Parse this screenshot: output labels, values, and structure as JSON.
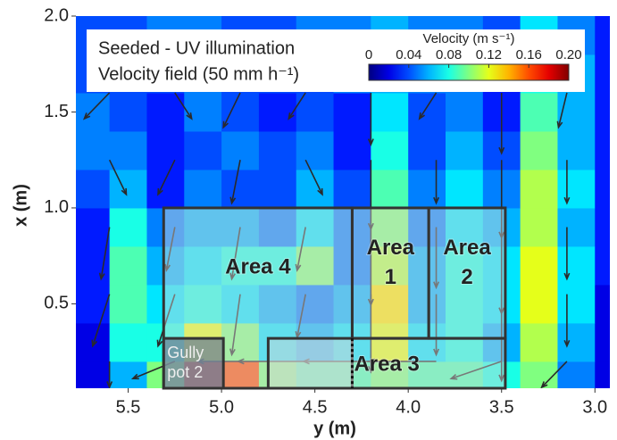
{
  "chart_data": {
    "type": "heatmap",
    "legend_text": [
      "Seeded - UV illumination",
      "Velocity field (50 mm h⁻¹)"
    ],
    "xlabel": "y (m)",
    "ylabel": "x (m)",
    "xlim": [
      5.78,
      2.92
    ],
    "ylim": [
      0.06,
      2.0
    ],
    "xticks": [
      5.5,
      {
        "value": 5.0,
        "label": "5.0"
      },
      4.5,
      {
        "value": 4.0,
        "label": "4.0"
      },
      3.5,
      {
        "value": 3.0,
        "label": "3.0"
      }
    ],
    "yticks": [
      0.5,
      {
        "value": 1.0,
        "label": "1.0"
      },
      1.5,
      {
        "value": 2.0,
        "label": "2.0"
      }
    ],
    "x": [
      5.7,
      5.5,
      5.3,
      5.1,
      4.9,
      4.7,
      4.5,
      4.3,
      4.1,
      3.9,
      3.7,
      3.5,
      3.3,
      3.1,
      2.9
    ],
    "y": [
      0.1,
      0.3,
      0.5,
      0.7,
      0.9,
      1.1,
      1.3,
      1.5,
      1.7,
      1.9
    ],
    "z": [
      [
        0.02,
        0.06,
        0.1,
        0.17,
        0.16,
        0.1,
        0.09,
        0.09,
        0.1,
        0.09,
        0.09,
        0.08,
        0.1,
        0.05,
        0.02
      ],
      [
        0.02,
        0.08,
        0.08,
        0.12,
        0.1,
        0.07,
        0.06,
        0.07,
        0.12,
        0.07,
        0.08,
        0.06,
        0.11,
        0.06,
        0.02
      ],
      [
        0.03,
        0.09,
        0.07,
        0.08,
        0.07,
        0.06,
        0.05,
        0.06,
        0.13,
        0.06,
        0.08,
        0.07,
        0.12,
        0.07,
        0.02
      ],
      [
        0.03,
        0.09,
        0.06,
        0.07,
        0.08,
        0.08,
        0.1,
        0.05,
        0.11,
        0.06,
        0.08,
        0.07,
        0.12,
        0.07,
        0.03
      ],
      [
        0.03,
        0.08,
        0.05,
        0.06,
        0.06,
        0.05,
        0.07,
        0.05,
        0.1,
        0.05,
        0.07,
        0.06,
        0.11,
        0.06,
        0.03
      ],
      [
        0.04,
        0.06,
        0.03,
        0.05,
        0.04,
        0.04,
        0.06,
        0.04,
        0.09,
        0.05,
        0.07,
        0.05,
        0.11,
        0.07,
        0.03
      ],
      [
        0.05,
        0.05,
        0.03,
        0.04,
        0.05,
        0.04,
        0.05,
        0.03,
        0.08,
        0.04,
        0.06,
        0.04,
        0.1,
        0.06,
        0.03
      ],
      [
        0.05,
        0.04,
        0.03,
        0.05,
        0.04,
        0.03,
        0.04,
        0.03,
        0.07,
        0.04,
        0.05,
        0.03,
        0.09,
        0.06,
        0.03
      ],
      [
        0.04,
        0.04,
        0.04,
        0.05,
        0.04,
        0.04,
        0.04,
        0.05,
        0.06,
        0.05,
        0.05,
        0.03,
        0.08,
        0.06,
        0.03
      ],
      [
        0.04,
        0.04,
        0.05,
        0.05,
        0.04,
        0.04,
        0.05,
        0.05,
        0.06,
        0.05,
        0.05,
        0.04,
        0.07,
        0.05,
        0.03
      ]
    ],
    "colormap": "jet",
    "colorbar": {
      "title": "Velocity (m s⁻¹)",
      "clim": [
        0,
        0.2
      ],
      "ticks": [
        0,
        0.04,
        0.08,
        0.12,
        0.16,
        {
          "value": 0.2,
          "label": "0.20"
        }
      ]
    },
    "vectors": {
      "x": [
        5.6,
        5.25,
        4.9,
        4.55,
        4.2,
        3.85,
        3.5,
        3.15
      ],
      "y": [
        0.2,
        0.55,
        0.9,
        1.25,
        1.6
      ],
      "u": [
        [
          0,
          0.05,
          0.05,
          0.08,
          0.08,
          0.08,
          0.06,
          0.03
        ],
        [
          0.02,
          0.02,
          0.01,
          0.01,
          0,
          0,
          0,
          0
        ],
        [
          0.01,
          0.01,
          0.01,
          0.01,
          0,
          0,
          0,
          0
        ],
        [
          -0.02,
          0.02,
          0.01,
          -0.02,
          0,
          0,
          0,
          0
        ],
        [
          0.03,
          -0.02,
          0.02,
          0.02,
          0,
          0.02,
          0,
          0.01
        ]
      ],
      "v": [
        [
          -0.03,
          -0.02,
          0,
          0,
          0,
          0,
          -0.02,
          -0.03
        ],
        [
          -0.06,
          -0.06,
          -0.07,
          -0.05,
          -0.09,
          -0.07,
          -0.1,
          -0.06
        ],
        [
          -0.06,
          -0.05,
          -0.06,
          -0.05,
          -0.09,
          -0.07,
          -0.1,
          -0.06
        ],
        [
          -0.04,
          -0.04,
          -0.05,
          -0.04,
          -0.08,
          -0.05,
          -0.09,
          -0.05
        ],
        [
          -0.03,
          -0.03,
          -0.04,
          -0.03,
          -0.06,
          -0.03,
          -0.07,
          -0.04
        ]
      ]
    },
    "regions": [
      {
        "label": [
          "Area 4"
        ],
        "x": [
          5.31,
          4.3
        ],
        "y": [
          0.06,
          1.0
        ]
      },
      {
        "label": [
          "Area",
          "1"
        ],
        "x": [
          4.3,
          3.89
        ],
        "y": [
          0.32,
          1.0
        ]
      },
      {
        "label": [
          "Area",
          "2"
        ],
        "x": [
          3.89,
          3.48
        ],
        "y": [
          0.32,
          1.0
        ]
      },
      {
        "label": [
          "Area 3"
        ],
        "x": [
          4.75,
          3.48
        ],
        "y": [
          0.06,
          0.32
        ]
      },
      {
        "label": [
          "Gully",
          "pot 2"
        ],
        "x": [
          5.31,
          4.99
        ],
        "y": [
          0.06,
          0.32
        ]
      }
    ],
    "dotted_line_x": 4.3
  }
}
